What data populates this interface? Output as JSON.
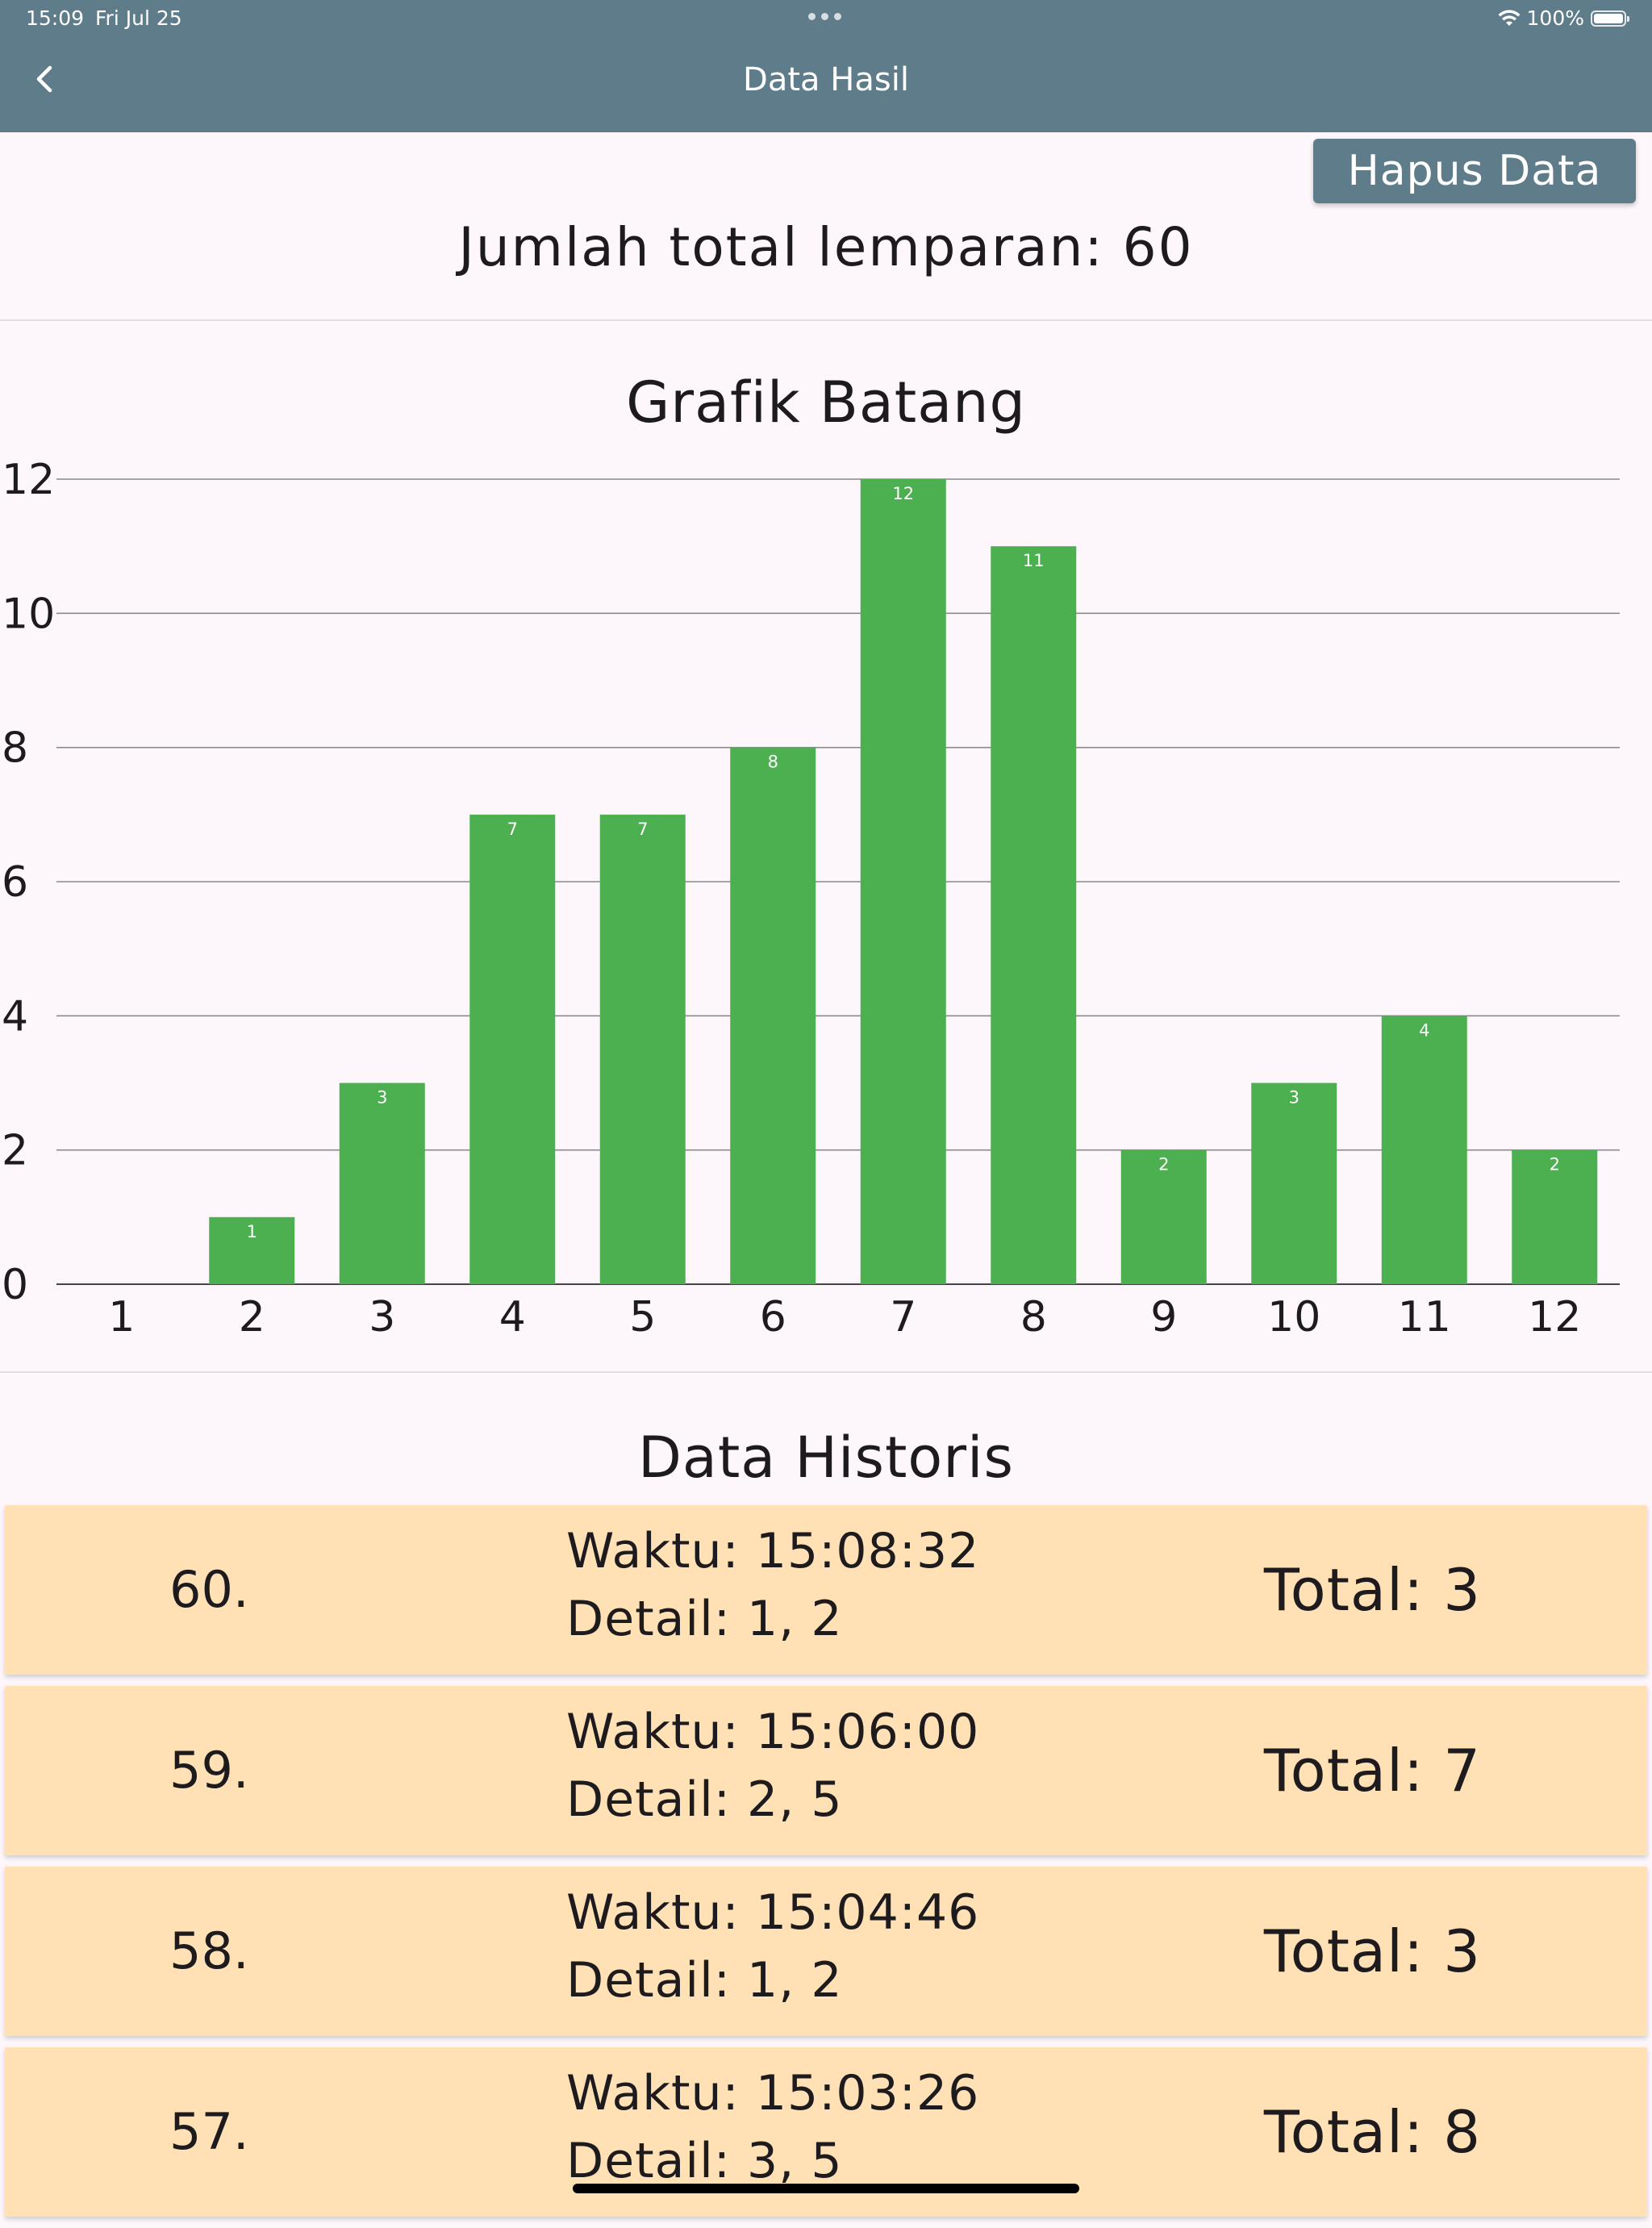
{
  "status_bar": {
    "time": "15:09",
    "date": "Fri Jul 25",
    "battery": "100%"
  },
  "app_bar": {
    "title": "Data Hasil"
  },
  "actions": {
    "delete_label": "Hapus Data"
  },
  "summary": {
    "total_throws": "Jumlah total lemparan: 60"
  },
  "chart_title": "Grafik Batang",
  "chart_data": {
    "type": "bar",
    "title": "Grafik Batang",
    "xlabel": "",
    "ylabel": "",
    "categories": [
      "1",
      "2",
      "3",
      "4",
      "5",
      "6",
      "7",
      "8",
      "9",
      "10",
      "11",
      "12"
    ],
    "values": [
      0,
      1,
      3,
      7,
      7,
      8,
      12,
      11,
      2,
      3,
      4,
      2
    ],
    "ylim": [
      0,
      12
    ],
    "yticks": [
      0,
      2,
      4,
      6,
      8,
      10,
      12
    ],
    "grid": true,
    "data_labels": true,
    "bar_color": "#4CAF50"
  },
  "history": {
    "title": "Data Historis",
    "entries": [
      {
        "index": "60.",
        "time": "Waktu: 15:08:32",
        "detail": "Detail: 1, 2",
        "total": "Total: 3"
      },
      {
        "index": "59.",
        "time": "Waktu: 15:06:00",
        "detail": "Detail: 2, 5",
        "total": "Total: 7"
      },
      {
        "index": "58.",
        "time": "Waktu: 15:04:46",
        "detail": "Detail: 1, 2",
        "total": "Total: 3"
      },
      {
        "index": "57.",
        "time": "Waktu: 15:03:26",
        "detail": "Detail: 3, 5",
        "total": "Total: 8"
      }
    ]
  },
  "colors": {
    "app_bar": "#5F7C8A",
    "bar": "#4CAF50",
    "card": "#FFE1B5",
    "background": "#FDF7FC"
  }
}
